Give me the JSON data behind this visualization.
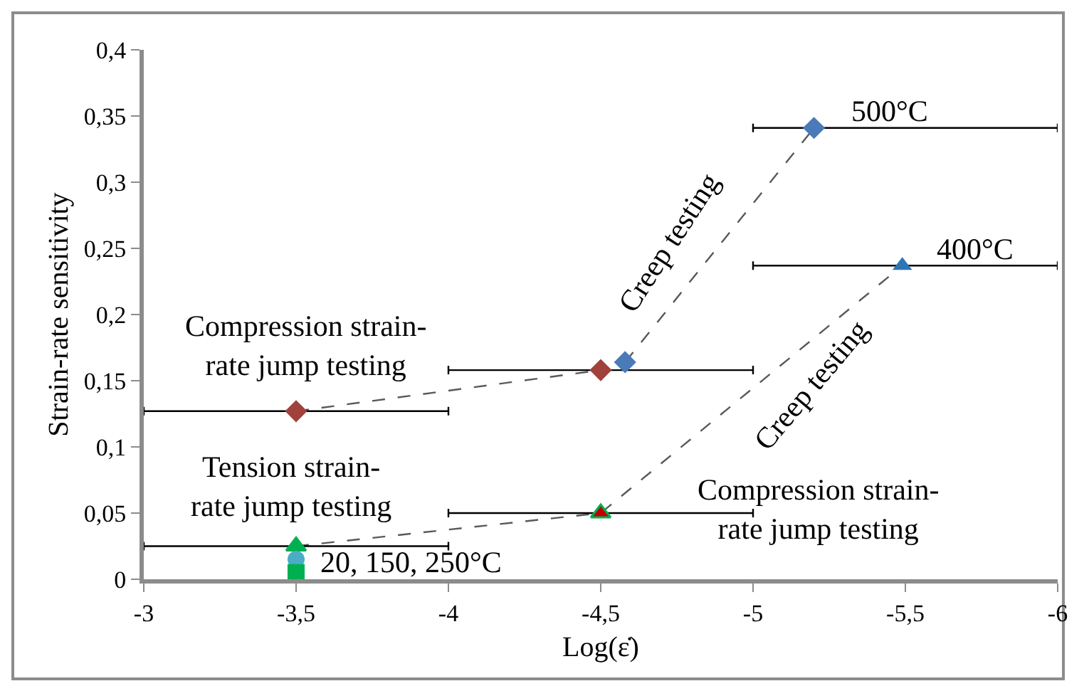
{
  "chart_data": {
    "type": "scatter",
    "xlabel": "Log(ε̇)",
    "ylabel": "Strain-rate sensitivity",
    "xlim": [
      -3,
      -6
    ],
    "xticks": [
      -3,
      {
        "value": -3.5,
        "label": "-3,5"
      },
      -4,
      {
        "value": -4.5,
        "label": "-4,5"
      },
      -5,
      {
        "value": -5.5,
        "label": "-5,5"
      },
      -6
    ],
    "ylim": [
      0,
      0.4
    ],
    "yticks": [
      0,
      {
        "value": 0.05,
        "label": "0,05"
      },
      {
        "value": 0.1,
        "label": "0,1"
      },
      {
        "value": 0.15,
        "label": "0,15"
      },
      {
        "value": 0.2,
        "label": "0,2"
      },
      {
        "value": 0.25,
        "label": "0,25"
      },
      {
        "value": 0.3,
        "label": "0,3"
      },
      {
        "value": 0.35,
        "label": "0,35"
      },
      {
        "value": 0.4,
        "label": "0,4"
      }
    ],
    "grid": false,
    "series": [
      {
        "type": "line",
        "color": "#595959",
        "line_style": "dashed",
        "marker": "none",
        "x": [
          -3.5,
          -4.5
        ],
        "values": [
          0.127,
          0.158
        ]
      },
      {
        "type": "line",
        "color": "#595959",
        "line_style": "dashed",
        "marker": "none",
        "x": [
          -4.58,
          -5.2
        ],
        "values": [
          0.164,
          0.341
        ]
      },
      {
        "type": "line",
        "color": "#595959",
        "line_style": "dashed",
        "marker": "none",
        "x": [
          -3.5,
          -4.5,
          -5.49
        ],
        "values": [
          0.025,
          0.05,
          0.237
        ]
      },
      {
        "type": "scatter",
        "marker": "diamond",
        "color": "#a0413b",
        "x": [
          -3.5,
          -4.5
        ],
        "values": [
          0.127,
          0.158
        ],
        "xerrors": [
          0.5,
          0.5
        ]
      },
      {
        "type": "scatter",
        "marker": "diamond",
        "color": "#4a7ab8",
        "x": [
          -4.58,
          -5.2
        ],
        "values": [
          0.164,
          0.341
        ],
        "xerrors": [
          null,
          [
            -6,
            -5
          ]
        ]
      },
      {
        "type": "scatter",
        "marker": "triangle",
        "color": "#00b050",
        "colors": [
          "#00b050",
          "#c00000"
        ],
        "x": [
          -3.5,
          -4.5
        ],
        "values": [
          0.025,
          0.05
        ],
        "xerrors": [
          0.5,
          0.5
        ]
      },
      {
        "type": "scatter",
        "marker": "triangle",
        "color": "#2e75b6",
        "x": [
          -5.49
        ],
        "values": [
          0.237
        ],
        "xerrors": [
          [
            -6,
            -5
          ]
        ]
      },
      {
        "type": "scatter",
        "marker": "circle",
        "color": "#4bacc6",
        "x": [
          -3.5
        ],
        "values": [
          0.015
        ]
      },
      {
        "type": "scatter",
        "marker": "square",
        "color": "#00b050",
        "x": [
          -3.5
        ],
        "values": [
          0.005
        ]
      }
    ],
    "annotations": [
      "Compression strain-\nrate jump testing",
      "Tension strain-\nrate jump testing",
      "20, 150, 250°C",
      "Creep testing",
      "500°C",
      "400°C",
      "Creep testing",
      "Compression strain-\nrate jump testing"
    ]
  }
}
